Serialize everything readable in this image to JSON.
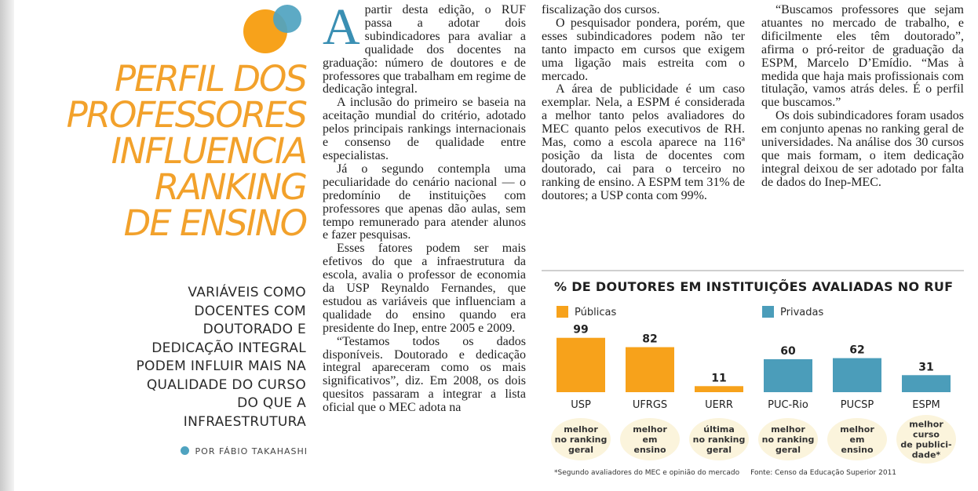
{
  "headline": {
    "lines": [
      "PERFIL DOS",
      "PROFESSORES",
      "INFLUENCIA",
      "RANKING",
      "DE ENSINO"
    ]
  },
  "deck": "VARIÁVEIS COMO DOCENTES COM DOUTORADO E DEDICAÇÃO INTEGRAL PODEM INFLUIR MAIS NA QUALIDADE DO CURSO DO QUE A INFRAESTRUTURA",
  "byline": "POR FÁBIO TAKAHASHI",
  "body": {
    "dropcap": "A",
    "col1": [
      "partir desta edição, o RUF passa a adotar dois subindicadores para avaliar a qualidade dos docentes na graduação: número de doutores e de professores que trabalham em regime de dedicação integral.",
      "A inclusão do primeiro se baseia na aceitação mundial do critério, adotado pelos principais rankings internacionais e consenso de qualidade entre especialistas.",
      "Já o segundo contempla uma peculiaridade do cenário nacional — o predomínio de instituições com professores que apenas dão aulas, sem tempo remunerado para atender alunos e fazer pesquisas.",
      "Esses fatores podem ser mais efetivos do que a infraestrutura da escola, avalia o professor de economia da USP Reynaldo Fernandes, que estudou as variáveis que influenciam a qualidade do ensino quando era presidente do Inep, entre 2005 e 2009.",
      "“Testamos todos os dados disponíveis. Doutorado e dedicação integral apareceram como os mais significativos”, diz. Em 2008, os dois quesitos passaram a integrar a lista oficial que o MEC adota na"
    ],
    "col2": [
      "fiscalização dos cursos.",
      "O pesquisador pondera, porém, que esses subindicadores podem não ter tanto impacto em cursos que exigem uma ligação mais estreita com o mercado.",
      "A área de publicidade é um caso exemplar. Nela, a ESPM é considerada a melhor tanto pelos avaliadores do MEC quanto pelos executivos de RH. Mas, como a escola aparece na 116ª posição da lista de docentes com doutorado, cai para o terceiro no ranking de ensino. A ESPM tem 31% de doutores; a USP conta com 99%."
    ],
    "col3": [
      "“Buscamos professores que sejam atuantes no mercado de trabalho, e dificilmente eles têm doutorado”, afirma o pró-reitor de graduação da ESPM, Marcelo D’Emídio. “Mas à medida que haja mais profissionais com titulação, vamos atrás deles. É o perfil que buscamos.”",
      "Os dois subindicadores foram usados em conjunto apenas no ranking geral de universidades. Na análise dos 30 cursos que mais formam, o item dedicação integral deixou de ser adotado por falta de dados do Inep-MEC."
    ]
  },
  "colors": {
    "publicas": "#f7a21b",
    "privadas": "#4b9dba",
    "headline": "#f2a12b",
    "badge": "#fbf4dc"
  },
  "chart_data": {
    "type": "bar",
    "title": "% DE DOUTORES EM INSTITUIÇÕES AVALIADAS NO RUF",
    "categories": [
      "USP",
      "UFRGS",
      "UERR",
      "PUC-Rio",
      "PUCSP",
      "ESPM"
    ],
    "values": [
      99,
      82,
      11,
      60,
      62,
      31
    ],
    "groups": [
      "Públicas",
      "Públicas",
      "Públicas",
      "Privadas",
      "Privadas",
      "Privadas"
    ],
    "legend": [
      {
        "name": "Públicas",
        "color": "#f7a21b"
      },
      {
        "name": "Privadas",
        "color": "#4b9dba"
      }
    ],
    "notes": [
      [
        "melhor",
        "no ranking",
        "geral"
      ],
      [
        "melhor",
        "em",
        "ensino"
      ],
      [
        "última",
        "no ranking",
        "geral"
      ],
      [
        "melhor",
        "no ranking",
        "geral"
      ],
      [
        "melhor",
        "em",
        "ensino"
      ],
      [
        "melhor",
        "curso",
        "de publici-",
        "dade*"
      ]
    ],
    "ylim": [
      0,
      100
    ],
    "footnote": "*Segundo avaliadores do MEC e opinião do mercado",
    "source": "Fonte: Censo da Educação Superior 2011"
  }
}
